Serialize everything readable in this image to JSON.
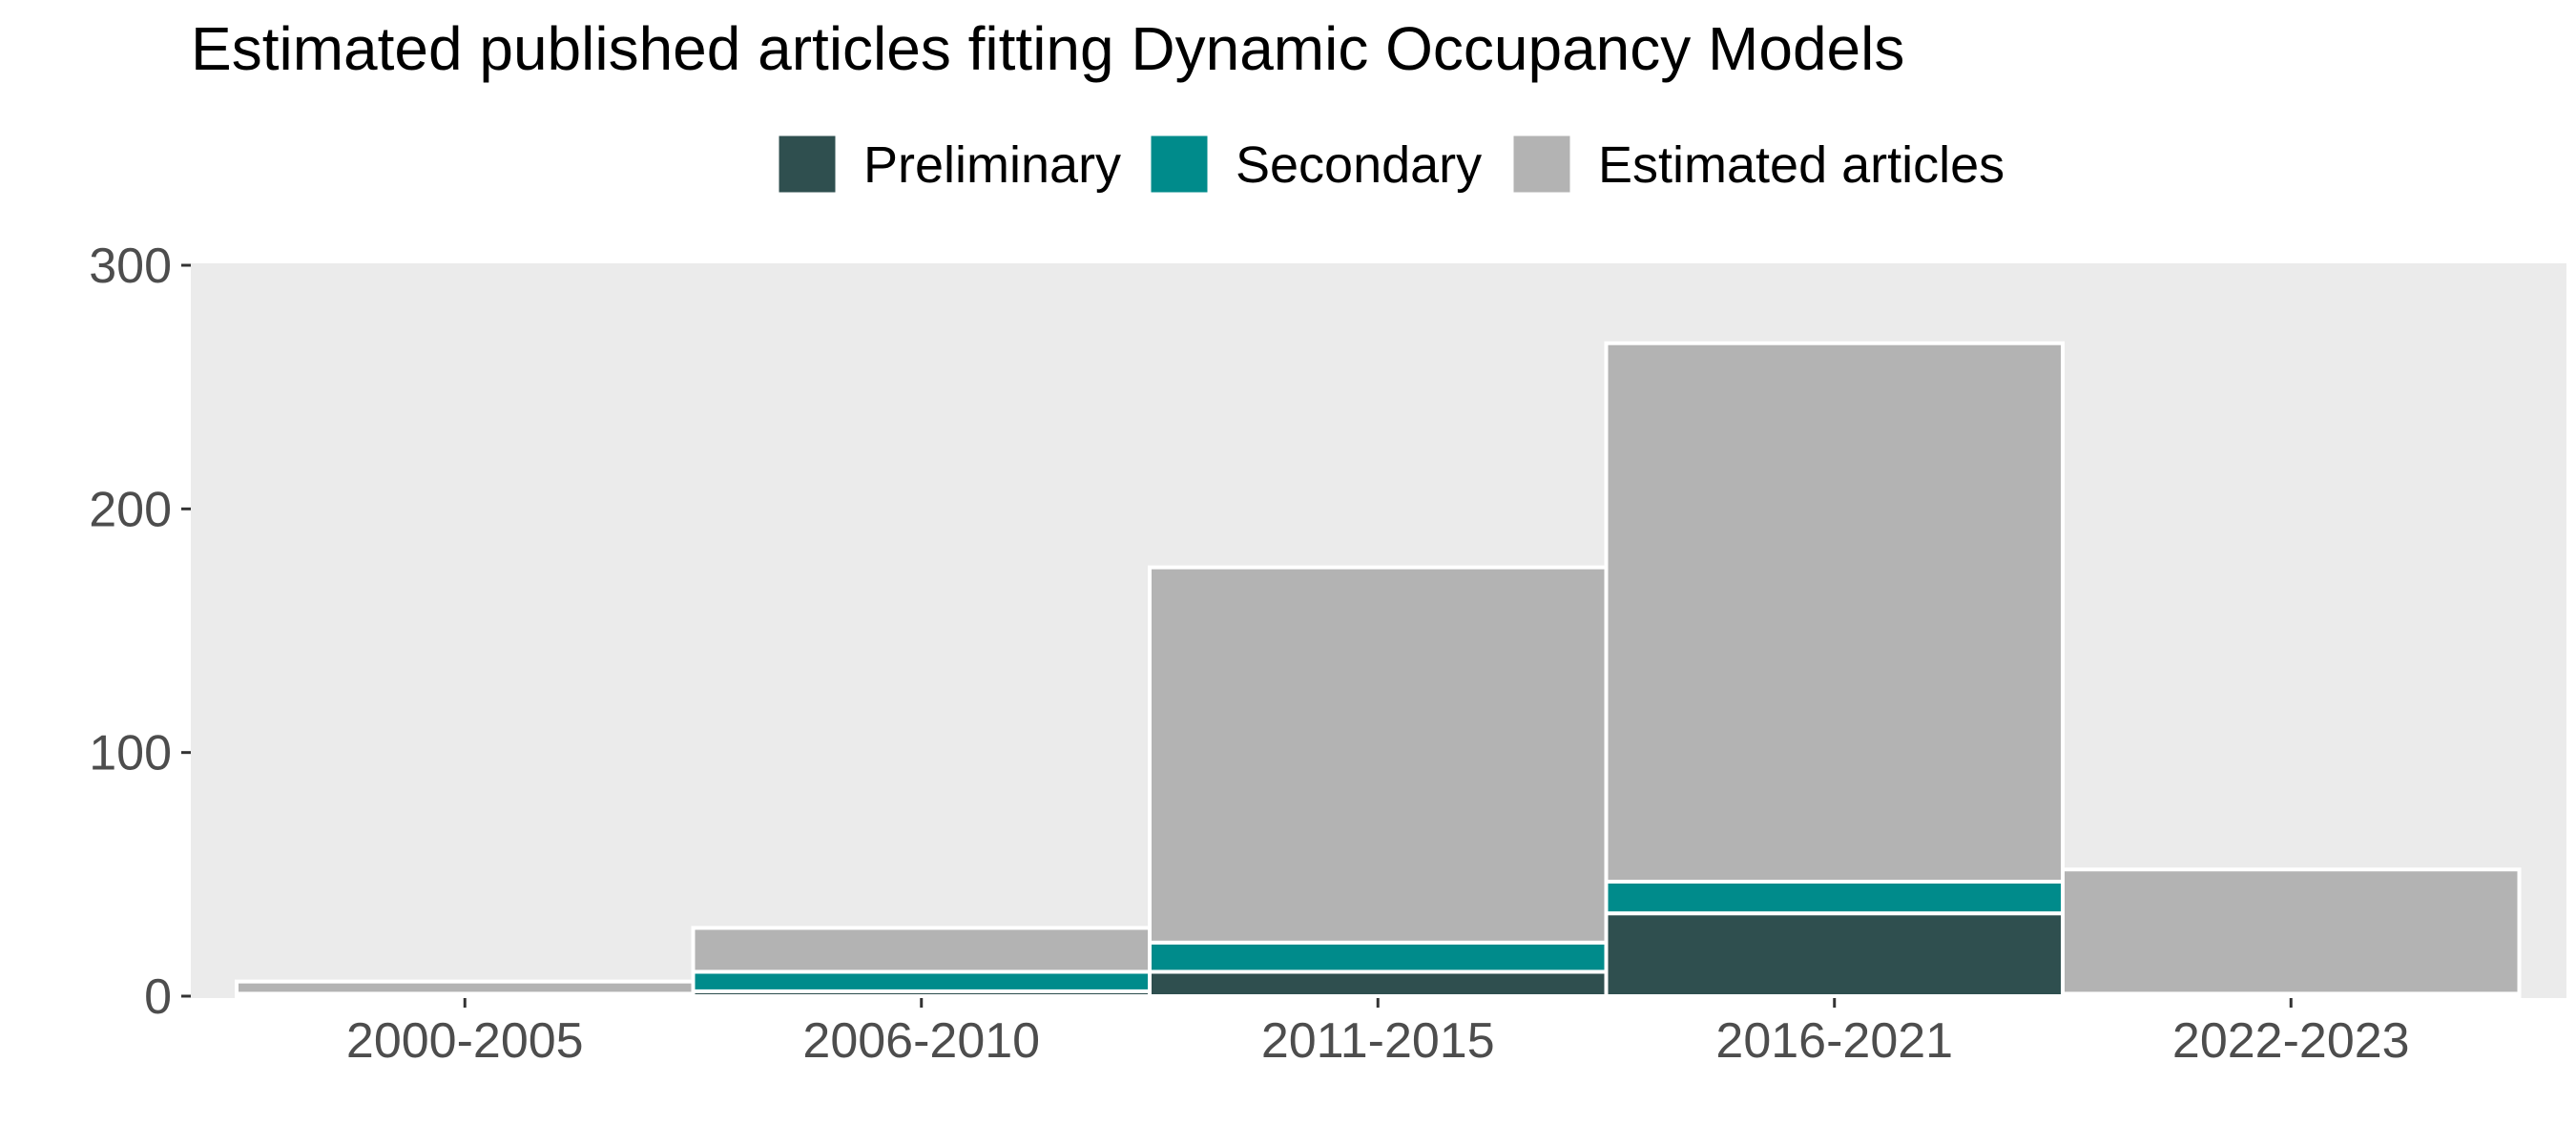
{
  "chart_data": {
    "type": "bar",
    "stacked": true,
    "title": "Estimated published articles fitting Dynamic Occupancy Models",
    "categories": [
      "2000-2005",
      "2006-2010",
      "2011-2015",
      "2016-2021",
      "2022-2023"
    ],
    "series": [
      {
        "name": "Preliminary",
        "color": "#2F4F4F",
        "values": [
          1,
          2,
          10,
          34,
          1
        ]
      },
      {
        "name": "Secondary",
        "color": "#008B8B",
        "values": [
          0,
          8,
          12,
          13,
          0
        ]
      },
      {
        "name": "Estimated articles",
        "color": "#B3B3B3",
        "values": [
          5,
          18,
          154,
          221,
          51
        ]
      }
    ],
    "y_ticks": [
      0,
      100,
      200,
      300
    ],
    "ylim": [
      0,
      300
    ],
    "legend_position": "top",
    "panel_background": "#EBEBEB",
    "grid": false
  }
}
